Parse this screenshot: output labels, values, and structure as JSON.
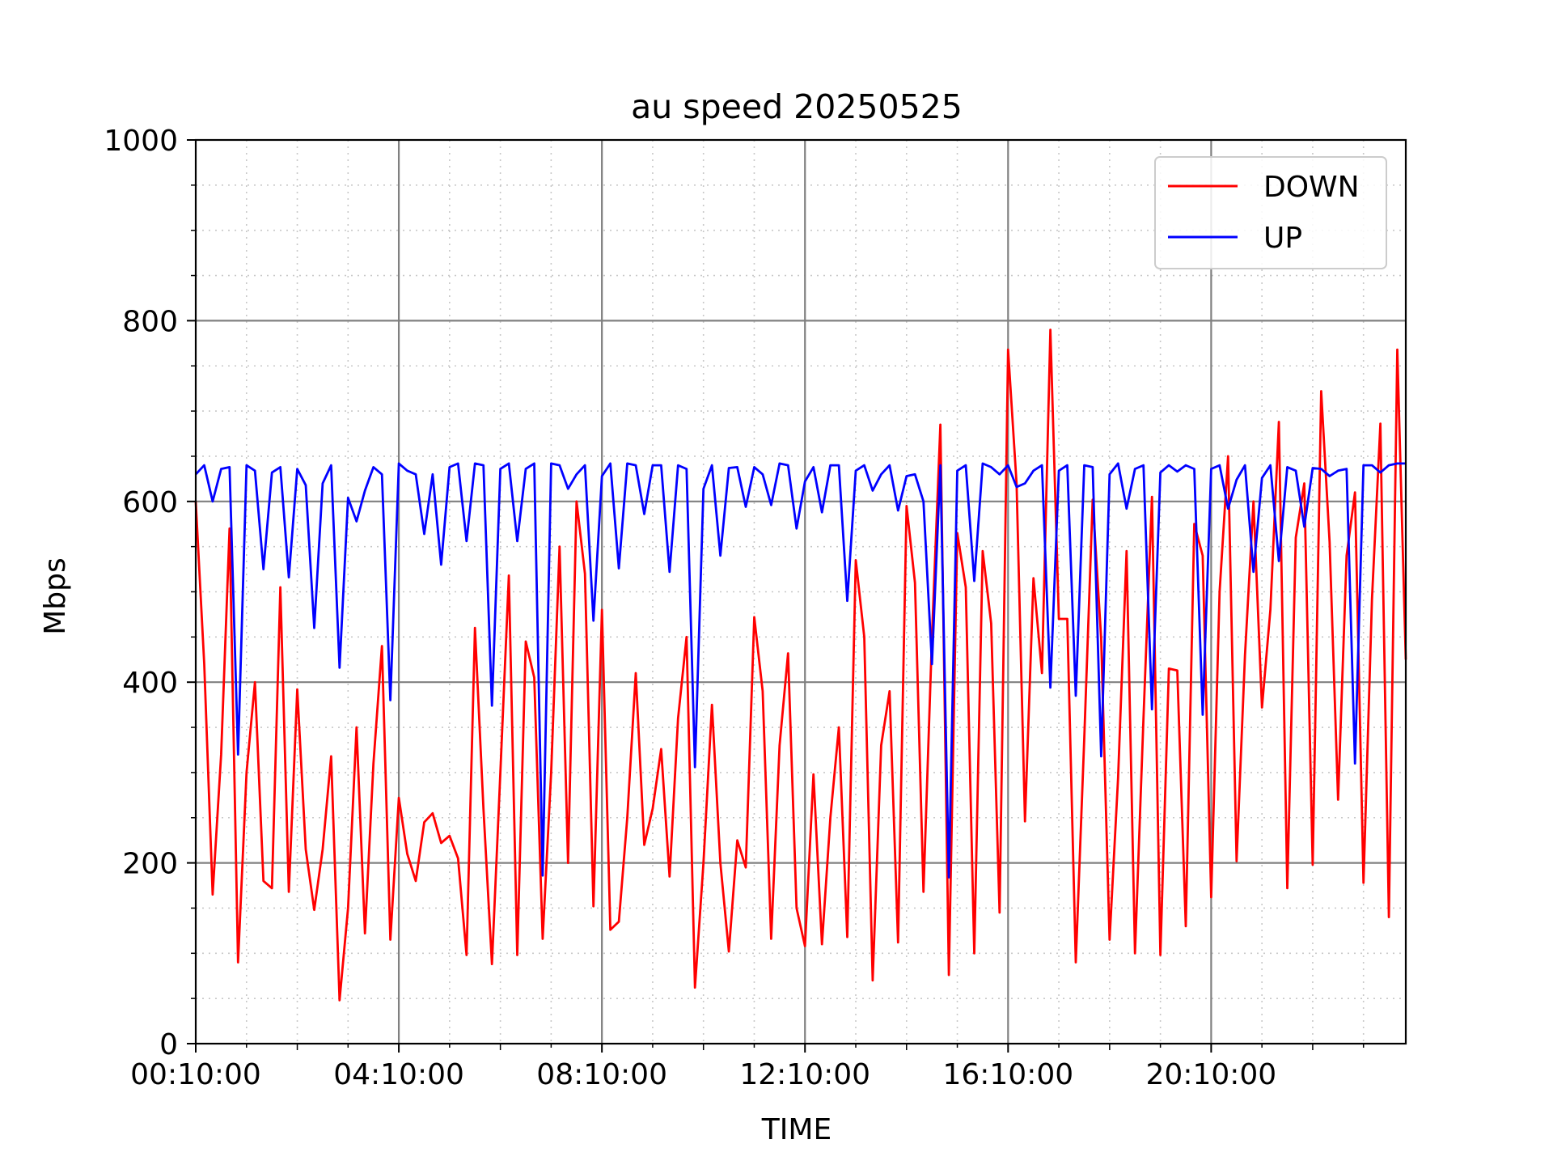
{
  "chart_data": {
    "type": "line",
    "title": "au speed 20250525",
    "xlabel": "TIME",
    "ylabel": "Mbps",
    "ylim": [
      0,
      1000
    ],
    "yticks": [
      "0",
      "200",
      "400",
      "600",
      "800",
      "1000"
    ],
    "xticks": [
      "00:10:00",
      "04:10:00",
      "08:10:00",
      "12:10:00",
      "16:10:00",
      "20:10:00"
    ],
    "grid": true,
    "legend_position": "top-right",
    "sample_interval_minutes": 10,
    "series": [
      {
        "name": "DOWN",
        "color": "#ff0000",
        "values": [
          600,
          420,
          165,
          320,
          570,
          90,
          300,
          400,
          180,
          172,
          505,
          168,
          392,
          215,
          148,
          215,
          318,
          48,
          150,
          350,
          122,
          310,
          440,
          115,
          272,
          210,
          180,
          245,
          255,
          222,
          230,
          205,
          98,
          460,
          260,
          88,
          300,
          518,
          98,
          445,
          405,
          116,
          300,
          550,
          200,
          600,
          520,
          152,
          480,
          126,
          135,
          250,
          410,
          220,
          260,
          326,
          185,
          360,
          450,
          62,
          200,
          375,
          200,
          102,
          225,
          195,
          472,
          390,
          116,
          330,
          432,
          150,
          108,
          298,
          110,
          250,
          350,
          118,
          535,
          450,
          70,
          330,
          390,
          112,
          595,
          510,
          168,
          450,
          685,
          76,
          565,
          505,
          100,
          545,
          465,
          145,
          768,
          620,
          246,
          515,
          410,
          790,
          470,
          470,
          90,
          338,
          602,
          448,
          115,
          294,
          545,
          100,
          360,
          605,
          98,
          415,
          413,
          130,
          575,
          540,
          162,
          500,
          650,
          202,
          430,
          600,
          372,
          480,
          688,
          172,
          560,
          620,
          198,
          722,
          555,
          270,
          540,
          610,
          178,
          492,
          686,
          140,
          768,
          425
        ]
      },
      {
        "name": "UP",
        "color": "#0000ff",
        "values": [
          630,
          640,
          600,
          636,
          638,
          320,
          640,
          634,
          525,
          632,
          638,
          516,
          636,
          618,
          460,
          620,
          640,
          416,
          604,
          578,
          612,
          638,
          630,
          380,
          642,
          634,
          630,
          564,
          630,
          530,
          638,
          642,
          556,
          642,
          640,
          374,
          636,
          642,
          556,
          636,
          642,
          186,
          642,
          640,
          614,
          630,
          640,
          468,
          628,
          642,
          526,
          642,
          640,
          586,
          640,
          640,
          522,
          640,
          636,
          306,
          614,
          640,
          540,
          637,
          638,
          594,
          638,
          630,
          596,
          642,
          640,
          570,
          622,
          638,
          588,
          640,
          640,
          490,
          634,
          640,
          612,
          630,
          640,
          590,
          628,
          630,
          600,
          420,
          640,
          184,
          634,
          640,
          512,
          642,
          638,
          630,
          640,
          616,
          620,
          634,
          640,
          394,
          634,
          640,
          385,
          640,
          638,
          318,
          630,
          642,
          592,
          636,
          640,
          370,
          632,
          640,
          633,
          640,
          636,
          364,
          636,
          640,
          592,
          624,
          640,
          522,
          626,
          640,
          534,
          638,
          634,
          572,
          637,
          636,
          628,
          634,
          636,
          310,
          640,
          640,
          632,
          640,
          642,
          642
        ]
      }
    ]
  }
}
